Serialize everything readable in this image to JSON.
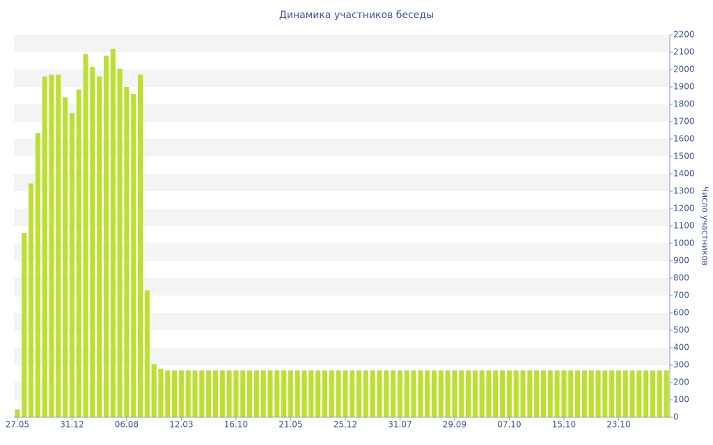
{
  "chart_data": {
    "type": "bar",
    "title": "Динамика участников беседы",
    "y_axis_label": "Число участников",
    "categories": [
      "27.05",
      null,
      null,
      null,
      null,
      null,
      null,
      null,
      "31.12",
      null,
      null,
      null,
      null,
      null,
      null,
      null,
      "06.08",
      null,
      null,
      null,
      null,
      null,
      null,
      null,
      "12.03",
      null,
      null,
      null,
      null,
      null,
      null,
      null,
      "16.10",
      null,
      null,
      null,
      null,
      null,
      null,
      null,
      "21.05",
      null,
      null,
      null,
      null,
      null,
      null,
      null,
      "25.12",
      null,
      null,
      null,
      null,
      null,
      null,
      null,
      "31.07",
      null,
      null,
      null,
      null,
      null,
      null,
      null,
      "29.09",
      null,
      null,
      null,
      null,
      null,
      null,
      null,
      "07.10",
      null,
      null,
      null,
      null,
      null,
      null,
      null,
      "15.10",
      null,
      null,
      null,
      null,
      null,
      null,
      null,
      "23.10",
      null,
      null,
      null,
      null,
      null,
      null,
      null
    ],
    "values": [
      45,
      1060,
      1345,
      1635,
      1960,
      1970,
      1970,
      1840,
      1750,
      1885,
      2090,
      2015,
      1960,
      2080,
      2120,
      2005,
      1900,
      1860,
      1970,
      730,
      305,
      278,
      270,
      270,
      270,
      270,
      270,
      270,
      270,
      270,
      270,
      270,
      270,
      270,
      270,
      270,
      270,
      270,
      270,
      270,
      270,
      270,
      270,
      270,
      270,
      270,
      270,
      270,
      270,
      270,
      270,
      270,
      270,
      270,
      270,
      270,
      270,
      270,
      270,
      270,
      270,
      270,
      270,
      270,
      270,
      270,
      270,
      270,
      270,
      270,
      270,
      270,
      270,
      270,
      270,
      270,
      270,
      270,
      270,
      270,
      270,
      270,
      270,
      270,
      270,
      270,
      270,
      270,
      270,
      270,
      270,
      270,
      270,
      270,
      270,
      270
    ],
    "color": "#bde030",
    "ylim": [
      0,
      2200
    ],
    "yticks": [
      0,
      100,
      200,
      300,
      400,
      500,
      600,
      700,
      800,
      900,
      1000,
      1100,
      1200,
      1300,
      1400,
      1500,
      1600,
      1700,
      1800,
      1900,
      2000,
      2100,
      2200
    ],
    "y_axis_side": "right",
    "grid": "bands"
  }
}
